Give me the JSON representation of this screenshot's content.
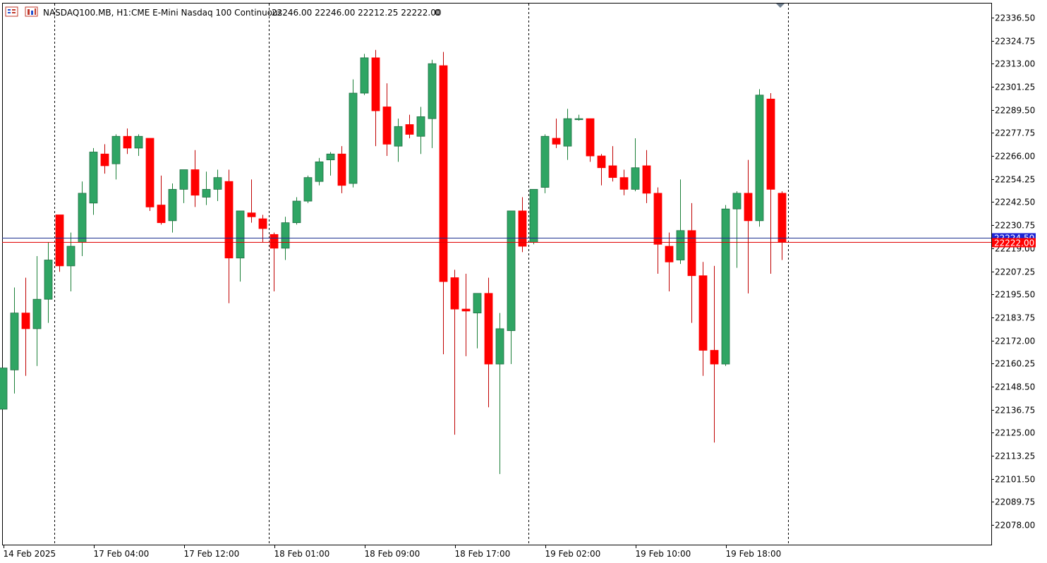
{
  "header": {
    "symbol": "NASDAQ100.MB, H1:",
    "description": "CME E-Mini Nasdaq 100 Continuous",
    "ohlc": "22246.00 22246.00 22212.25 22222.00",
    "volume": "0",
    "icons": [
      "chart-list-icon",
      "ohlc-window-icon"
    ]
  },
  "colors": {
    "bull": "#2fa564",
    "bear": "#ff0000",
    "bull_wick": "#1a7f37",
    "bear_wick": "#c00000",
    "frame": "#000000",
    "separator": "#000000",
    "bid_line": "#e00000",
    "bid_tag_bg": "#ff0000",
    "ask_line": "#1c2f8f",
    "ask_tag_bg": "#1d24d6",
    "background": "#ffffff"
  },
  "price_tags": {
    "ask_text": "22224.50",
    "bid_text": "22222.00"
  },
  "chart_data": {
    "type": "candlestick",
    "timeframe": "H1",
    "ylim": [
      22068.0,
      22344.0
    ],
    "y_ticks": [
      "22336.50",
      "22324.75",
      "22313.00",
      "22301.25",
      "22289.50",
      "22277.75",
      "22266.00",
      "22254.25",
      "22242.50",
      "22230.75",
      "22219.00",
      "22207.25",
      "22195.50",
      "22183.75",
      "22172.00",
      "22160.25",
      "22148.50",
      "22136.75",
      "22125.00",
      "22113.25",
      "22101.50",
      "22089.75",
      "22078.00"
    ],
    "x_labels": [
      {
        "label": "14 Feb 2025",
        "index": 0
      },
      {
        "label": "17 Feb 04:00",
        "index": 8
      },
      {
        "label": "17 Feb 12:00",
        "index": 16
      },
      {
        "label": "18 Feb 01:00",
        "index": 24
      },
      {
        "label": "18 Feb 09:00",
        "index": 32
      },
      {
        "label": "18 Feb 17:00",
        "index": 40
      },
      {
        "label": "19 Feb 02:00",
        "index": 48
      },
      {
        "label": "19 Feb 10:00",
        "index": 56
      },
      {
        "label": "19 Feb 18:00",
        "index": 64
      }
    ],
    "day_separators_after_index": [
      4.5,
      23.5,
      46.5,
      69.5
    ],
    "current_bid": 22222.0,
    "current_ask": 22224.5,
    "candles": [
      {
        "o": 22137.0,
        "h": 22158.0,
        "l": 22137.0,
        "c": 22158.0
      },
      {
        "o": 22157.0,
        "h": 22199.0,
        "l": 22145.0,
        "c": 22186.0
      },
      {
        "o": 22186.0,
        "h": 22204.0,
        "l": 22154.0,
        "c": 22178.0
      },
      {
        "o": 22178.0,
        "h": 22215.0,
        "l": 22159.0,
        "c": 22193.0
      },
      {
        "o": 22193.0,
        "h": 22222.0,
        "l": 22181.0,
        "c": 22213.0
      },
      {
        "o": 22236.0,
        "h": 22236.0,
        "l": 22207.0,
        "c": 22210.0
      },
      {
        "o": 22210.0,
        "h": 22227.0,
        "l": 22197.0,
        "c": 22220.0
      },
      {
        "o": 22222.0,
        "h": 22253.0,
        "l": 22215.0,
        "c": 22247.0
      },
      {
        "o": 22242.0,
        "h": 22270.0,
        "l": 22236.0,
        "c": 22268.0
      },
      {
        "o": 22267.0,
        "h": 22272.0,
        "l": 22257.0,
        "c": 22261.0
      },
      {
        "o": 22262.0,
        "h": 22277.0,
        "l": 22254.0,
        "c": 22276.0
      },
      {
        "o": 22276.0,
        "h": 22280.0,
        "l": 22267.0,
        "c": 22270.0
      },
      {
        "o": 22270.0,
        "h": 22277.0,
        "l": 22266.0,
        "c": 22276.0
      },
      {
        "o": 22275.0,
        "h": 22275.0,
        "l": 22238.0,
        "c": 22240.0
      },
      {
        "o": 22241.0,
        "h": 22256.0,
        "l": 22231.0,
        "c": 22232.0
      },
      {
        "o": 22233.0,
        "h": 22252.0,
        "l": 22227.0,
        "c": 22249.0
      },
      {
        "o": 22249.0,
        "h": 22259.0,
        "l": 22242.0,
        "c": 22259.0
      },
      {
        "o": 22259.0,
        "h": 22269.0,
        "l": 22240.0,
        "c": 22246.0
      },
      {
        "o": 22245.0,
        "h": 22258.0,
        "l": 22241.0,
        "c": 22249.0
      },
      {
        "o": 22249.0,
        "h": 22259.0,
        "l": 22243.0,
        "c": 22255.0
      },
      {
        "o": 22253.0,
        "h": 22259.0,
        "l": 22191.0,
        "c": 22214.0
      },
      {
        "o": 22214.0,
        "h": 22237.0,
        "l": 22202.0,
        "c": 22238.0
      },
      {
        "o": 22237.0,
        "h": 22254.0,
        "l": 22232.0,
        "c": 22235.0
      },
      {
        "o": 22234.0,
        "h": 22236.0,
        "l": 22222.0,
        "c": 22229.0
      },
      {
        "o": 22226.0,
        "h": 22227.0,
        "l": 22197.0,
        "c": 22219.0
      },
      {
        "o": 22219.0,
        "h": 22235.0,
        "l": 22213.0,
        "c": 22232.0
      },
      {
        "o": 22232.0,
        "h": 22245.0,
        "l": 22231.0,
        "c": 22243.0
      },
      {
        "o": 22243.0,
        "h": 22256.0,
        "l": 22242.0,
        "c": 22255.0
      },
      {
        "o": 22253.0,
        "h": 22265.0,
        "l": 22251.0,
        "c": 22263.0
      },
      {
        "o": 22264.0,
        "h": 22268.0,
        "l": 22256.0,
        "c": 22267.0
      },
      {
        "o": 22267.0,
        "h": 22271.0,
        "l": 22247.0,
        "c": 22251.0
      },
      {
        "o": 22252.0,
        "h": 22305.0,
        "l": 22250.0,
        "c": 22298.0
      },
      {
        "o": 22298.0,
        "h": 22318.0,
        "l": 22297.0,
        "c": 22316.0
      },
      {
        "o": 22316.0,
        "h": 22320.0,
        "l": 22271.0,
        "c": 22289.0
      },
      {
        "o": 22291.0,
        "h": 22303.0,
        "l": 22266.0,
        "c": 22272.0
      },
      {
        "o": 22271.0,
        "h": 22285.0,
        "l": 22263.0,
        "c": 22281.0
      },
      {
        "o": 22282.0,
        "h": 22287.0,
        "l": 22275.0,
        "c": 22277.0
      },
      {
        "o": 22276.0,
        "h": 22291.0,
        "l": 22267.0,
        "c": 22286.0
      },
      {
        "o": 22285.0,
        "h": 22315.0,
        "l": 22270.0,
        "c": 22313.0
      },
      {
        "o": 22312.0,
        "h": 22319.0,
        "l": 22165.0,
        "c": 22202.0
      },
      {
        "o": 22204.0,
        "h": 22208.0,
        "l": 22124.0,
        "c": 22188.0
      },
      {
        "o": 22188.0,
        "h": 22206.0,
        "l": 22164.0,
        "c": 22187.0
      },
      {
        "o": 22186.0,
        "h": 22196.0,
        "l": 22168.0,
        "c": 22196.0
      },
      {
        "o": 22196.0,
        "h": 22204.0,
        "l": 22138.0,
        "c": 22160.0
      },
      {
        "o": 22160.0,
        "h": 22186.0,
        "l": 22104.0,
        "c": 22178.0
      },
      {
        "o": 22177.0,
        "h": 22238.0,
        "l": 22160.0,
        "c": 22238.0
      },
      {
        "o": 22238.0,
        "h": 22245.0,
        "l": 22217.0,
        "c": 22220.0
      },
      {
        "o": 22222.0,
        "h": 22249.0,
        "l": 22221.0,
        "c": 22249.0
      },
      {
        "o": 22250.0,
        "h": 22277.0,
        "l": 22247.0,
        "c": 22276.0
      },
      {
        "o": 22275.0,
        "h": 22285.0,
        "l": 22270.0,
        "c": 22272.0
      },
      {
        "o": 22271.0,
        "h": 22290.0,
        "l": 22264.0,
        "c": 22285.0
      },
      {
        "o": 22285.0,
        "h": 22287.0,
        "l": 22284.0,
        "c": 22285.0
      },
      {
        "o": 22285.0,
        "h": 22285.0,
        "l": 22263.0,
        "c": 22266.0
      },
      {
        "o": 22266.0,
        "h": 22267.0,
        "l": 22251.0,
        "c": 22260.0
      },
      {
        "o": 22261.0,
        "h": 22271.0,
        "l": 22253.0,
        "c": 22255.0
      },
      {
        "o": 22255.0,
        "h": 22259.0,
        "l": 22246.0,
        "c": 22249.0
      },
      {
        "o": 22249.0,
        "h": 22275.0,
        "l": 22248.0,
        "c": 22260.0
      },
      {
        "o": 22261.0,
        "h": 22269.0,
        "l": 22242.0,
        "c": 22247.0
      },
      {
        "o": 22247.0,
        "h": 22250.0,
        "l": 22206.0,
        "c": 22221.0
      },
      {
        "o": 22220.0,
        "h": 22227.0,
        "l": 22197.0,
        "c": 22212.0
      },
      {
        "o": 22213.0,
        "h": 22254.0,
        "l": 22211.0,
        "c": 22228.0
      },
      {
        "o": 22228.0,
        "h": 22242.0,
        "l": 22181.0,
        "c": 22205.0
      },
      {
        "o": 22205.0,
        "h": 22212.0,
        "l": 22154.0,
        "c": 22167.0
      },
      {
        "o": 22167.0,
        "h": 22210.0,
        "l": 22120.0,
        "c": 22160.0
      },
      {
        "o": 22160.0,
        "h": 22241.0,
        "l": 22159.0,
        "c": 22239.0
      },
      {
        "o": 22239.0,
        "h": 22248.0,
        "l": 22209.0,
        "c": 22247.0
      },
      {
        "o": 22247.0,
        "h": 22264.0,
        "l": 22196.0,
        "c": 22233.0
      },
      {
        "o": 22233.0,
        "h": 22300.0,
        "l": 22230.0,
        "c": 22297.0
      },
      {
        "o": 22295.0,
        "h": 22298.0,
        "l": 22206.0,
        "c": 22249.0
      },
      {
        "o": 22247.0,
        "h": 22248.0,
        "l": 22213.0,
        "c": 22222.0
      }
    ]
  }
}
